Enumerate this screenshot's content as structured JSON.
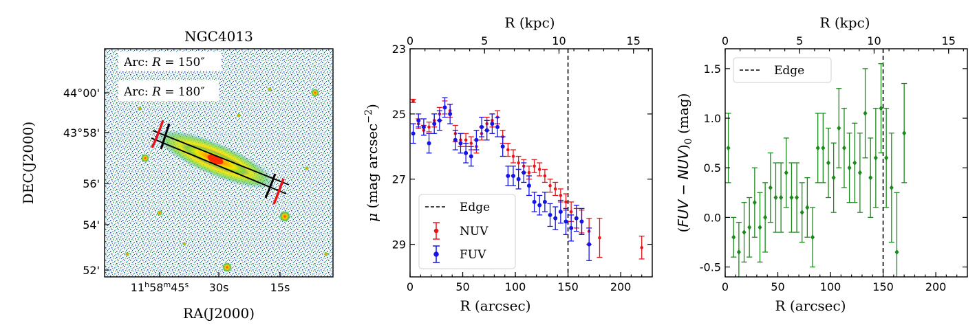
{
  "colors": {
    "nuv": "#e8141a",
    "fuv": "#1414e6",
    "color_index": "#1a8a1a",
    "edge": "#000000"
  },
  "chart_data": [
    {
      "type": "image",
      "title": "NGC4013",
      "xlabel": "RA(J2000)",
      "ylabel": "DEC(J2000)",
      "x_ticks": [
        "11h58m45s",
        "30s",
        "15s"
      ],
      "x_tick_parts": {
        "h": "11",
        "m": "58",
        "s": "45"
      },
      "x_tick_30": "30s",
      "x_tick_15": "15s",
      "y_ticks": [
        "44°00'",
        "43°58'",
        "56'",
        "54'",
        "52'"
      ],
      "legend": [
        {
          "label": "Arc: R = 150″",
          "color": "#000000",
          "prefix": "Arc: ",
          "var": "R",
          "value": " = 150″"
        },
        {
          "label": "Arc: R = 180″",
          "color": "#e8141a",
          "prefix": "Arc: ",
          "var": "R",
          "value": " = 180″"
        }
      ]
    },
    {
      "type": "scatter",
      "xlabel": "R (arcsec)",
      "ylabel": "μ (mag arcsec⁻²)",
      "ylabel_parts": {
        "mu": "μ",
        "text": " (mag arcsec",
        "sup": "−2",
        "close": ")"
      },
      "top_xlabel": "R (kpc)",
      "xlim": [
        0,
        230
      ],
      "ylim": [
        30,
        23
      ],
      "x_ticks": [
        0,
        50,
        100,
        150,
        200
      ],
      "y_ticks": [
        23,
        25,
        27,
        29
      ],
      "top_x_ticks": [
        0,
        5,
        10,
        15
      ],
      "kpc_per_arcsec": 0.0707,
      "edge_x": 150,
      "legend_position": "lower-left",
      "legend": [
        "Edge",
        "NUV",
        "FUV"
      ],
      "series": [
        {
          "name": "NUV",
          "x": [
            3,
            8,
            13,
            18,
            23,
            28,
            33,
            38,
            43,
            48,
            53,
            58,
            63,
            68,
            73,
            78,
            83,
            88,
            93,
            98,
            103,
            108,
            113,
            118,
            123,
            128,
            133,
            138,
            143,
            148,
            153,
            158,
            163,
            170,
            180,
            220
          ],
          "y": [
            24.6,
            25.3,
            25.5,
            25.4,
            25.2,
            25.0,
            24.8,
            24.9,
            25.6,
            25.8,
            25.8,
            25.9,
            26.0,
            25.6,
            25.3,
            25.2,
            25.1,
            25.7,
            26.1,
            26.3,
            26.5,
            26.6,
            26.8,
            26.6,
            26.7,
            26.9,
            27.2,
            27.3,
            27.5,
            27.7,
            28.0,
            28.2,
            28.3,
            28.6,
            28.8,
            29.1
          ],
          "err": [
            0.05,
            0.15,
            0.15,
            0.15,
            0.2,
            0.2,
            0.2,
            0.2,
            0.25,
            0.2,
            0.2,
            0.2,
            0.2,
            0.2,
            0.2,
            0.2,
            0.2,
            0.2,
            0.2,
            0.2,
            0.2,
            0.2,
            0.2,
            0.2,
            0.2,
            0.2,
            0.2,
            0.2,
            0.2,
            0.25,
            0.3,
            0.3,
            0.35,
            0.4,
            0.6,
            0.35
          ]
        },
        {
          "name": "FUV",
          "x": [
            3,
            8,
            13,
            18,
            23,
            28,
            33,
            38,
            43,
            48,
            53,
            58,
            63,
            68,
            73,
            78,
            83,
            88,
            93,
            98,
            103,
            108,
            113,
            118,
            123,
            128,
            133,
            138,
            143,
            148,
            153,
            158,
            163,
            170
          ],
          "y": [
            25.6,
            25.2,
            25.4,
            25.9,
            25.3,
            25.2,
            24.8,
            25.0,
            25.8,
            25.9,
            26.2,
            26.3,
            25.8,
            25.4,
            25.5,
            25.3,
            25.4,
            26.0,
            26.9,
            26.9,
            27.0,
            26.8,
            27.2,
            27.7,
            27.8,
            27.7,
            28.1,
            28.2,
            28.0,
            28.3,
            28.5,
            28.2,
            28.3,
            29.0
          ],
          "err": [
            0.3,
            0.2,
            0.25,
            0.3,
            0.3,
            0.3,
            0.3,
            0.3,
            0.3,
            0.3,
            0.3,
            0.3,
            0.3,
            0.3,
            0.3,
            0.3,
            0.3,
            0.3,
            0.3,
            0.3,
            0.3,
            0.3,
            0.3,
            0.3,
            0.3,
            0.3,
            0.35,
            0.35,
            0.35,
            0.4,
            0.4,
            0.4,
            0.4,
            0.5
          ]
        }
      ]
    },
    {
      "type": "scatter",
      "xlabel": "R (arcsec)",
      "ylabel": "(FUV − NUV)₀ (mag)",
      "ylabel_parts": {
        "open": "(",
        "expr": "FUV − NUV",
        "close": ")",
        "sub": "0",
        "unit": " (mag)"
      },
      "top_xlabel": "R (kpc)",
      "xlim": [
        0,
        230
      ],
      "ylim": [
        -0.6,
        1.7
      ],
      "x_ticks": [
        0,
        50,
        100,
        150,
        200
      ],
      "y_ticks": [
        -0.5,
        0.0,
        0.5,
        1.0,
        1.5
      ],
      "top_x_ticks": [
        0,
        5,
        10,
        15
      ],
      "kpc_per_arcsec": 0.0707,
      "edge_x": 150,
      "legend_position": "top-left",
      "legend": [
        "Edge"
      ],
      "series": [
        {
          "name": "FUV-NUV",
          "x": [
            3,
            8,
            13,
            18,
            23,
            28,
            33,
            38,
            43,
            48,
            53,
            58,
            63,
            68,
            73,
            78,
            83,
            88,
            93,
            98,
            103,
            108,
            113,
            118,
            123,
            128,
            133,
            138,
            143,
            148,
            153,
            158,
            163,
            170
          ],
          "y": [
            0.7,
            -0.2,
            -0.35,
            -0.15,
            -0.1,
            0.15,
            -0.1,
            0.0,
            0.3,
            0.2,
            0.2,
            0.45,
            0.2,
            0.2,
            0.05,
            0.1,
            -0.2,
            0.7,
            0.7,
            0.55,
            0.4,
            0.9,
            0.7,
            0.5,
            0.55,
            0.45,
            1.05,
            0.4,
            0.6,
            1.1,
            0.6,
            0.3,
            -0.35,
            0.85
          ],
          "err": [
            0.35,
            0.2,
            0.3,
            0.3,
            0.3,
            0.35,
            0.35,
            0.35,
            0.35,
            0.35,
            0.35,
            0.35,
            0.35,
            0.35,
            0.3,
            0.3,
            0.3,
            0.35,
            0.35,
            0.35,
            0.35,
            0.4,
            0.4,
            0.35,
            0.4,
            0.4,
            0.45,
            0.4,
            0.5,
            0.45,
            0.5,
            0.55,
            0.6,
            0.5
          ]
        }
      ]
    }
  ]
}
